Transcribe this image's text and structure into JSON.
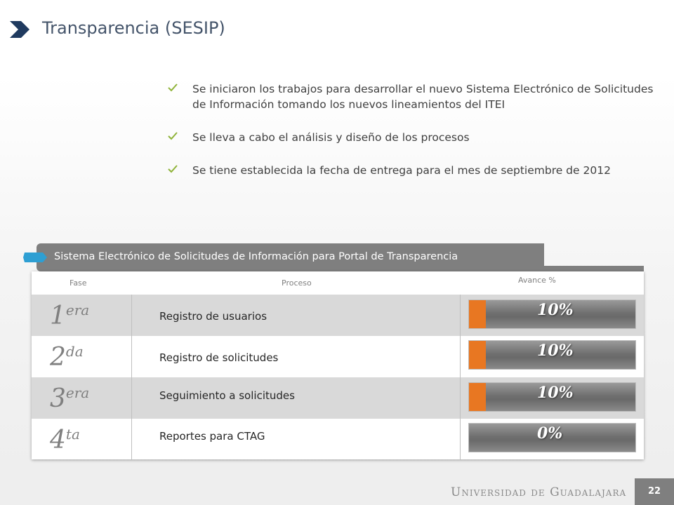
{
  "title": "Transparencia (SESIP)",
  "bullets": [
    "Se iniciaron los trabajos para desarrollar el nuevo Sistema Electrónico de Solicitudes de Información tomando los nuevos lineamientos del ITEI",
    "Se lleva a cabo el análisis y diseño de los procesos",
    "Se tiene establecida la fecha de entrega para el mes de septiembre de 2012"
  ],
  "banner": "Sistema Electrónico de Solicitudes de Información para Portal de Transparencia",
  "table": {
    "headers": {
      "fase": "Fase",
      "proceso": "Proceso",
      "avance": "Avance %"
    },
    "rows": [
      {
        "fase_num": "1",
        "fase_sup": "era",
        "proceso": "Registro de usuarios",
        "avance_label": "10%",
        "avance": 10
      },
      {
        "fase_num": "2",
        "fase_sup": "da",
        "proceso": "Registro de solicitudes",
        "avance_label": "10%",
        "avance": 10
      },
      {
        "fase_num": "3",
        "fase_sup": "era",
        "proceso": "Seguimiento a solicitudes",
        "avance_label": "10%",
        "avance": 10
      },
      {
        "fase_num": "4",
        "fase_sup": "ta",
        "proceso": "Reportes para CTAG",
        "avance_label": "0%",
        "avance": 0
      }
    ]
  },
  "footer": {
    "institution": "Universidad de Guadalajara",
    "page": "22"
  },
  "colors": {
    "accent_orange": "#e87722",
    "banner_gray": "#7f7f7f",
    "title_blue": "#44546a",
    "check_green": "#8fb339",
    "tag_blue": "#2e9fd3"
  }
}
